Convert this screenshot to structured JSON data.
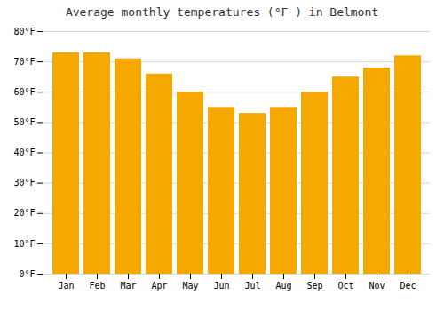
{
  "chart_data": {
    "type": "bar",
    "title": "Average monthly temperatures (°F ) in Belmont",
    "categories": [
      "Jan",
      "Feb",
      "Mar",
      "Apr",
      "May",
      "Jun",
      "Jul",
      "Aug",
      "Sep",
      "Oct",
      "Nov",
      "Dec"
    ],
    "values": [
      73,
      73,
      71,
      66,
      60,
      55,
      53,
      55,
      60,
      65,
      68,
      72
    ],
    "color": "#F5A800",
    "ylim": [
      0,
      80
    ],
    "yticks": [
      {
        "value": 0,
        "label": "0°F"
      },
      {
        "value": 10,
        "label": "10°F"
      },
      {
        "value": 20,
        "label": "20°F"
      },
      {
        "value": 30,
        "label": "30°F"
      },
      {
        "value": 40,
        "label": "40°F"
      },
      {
        "value": 50,
        "label": "50°F"
      },
      {
        "value": 60,
        "label": "60°F"
      },
      {
        "value": 70,
        "label": "70°F"
      },
      {
        "value": 80,
        "label": "80°F"
      }
    ],
    "grid": true
  }
}
